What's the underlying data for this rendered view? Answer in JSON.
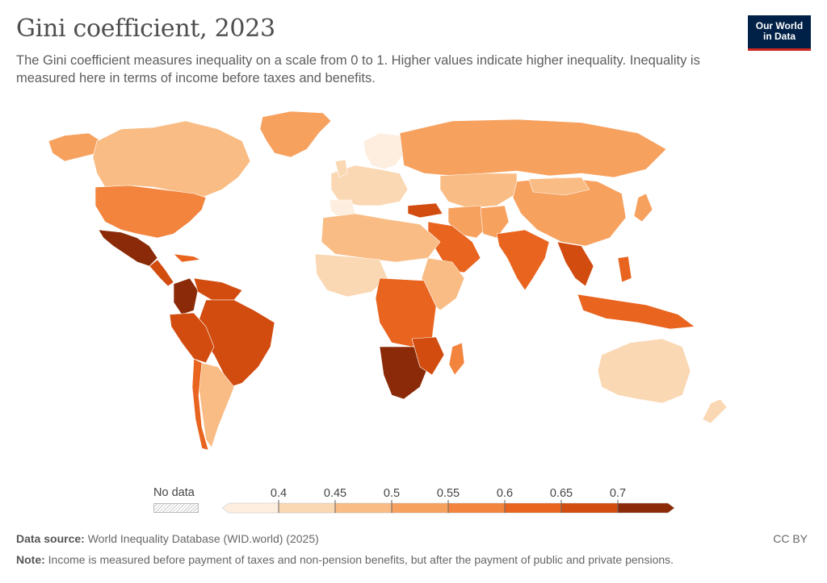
{
  "header": {
    "title": "Gini coefficient, 2023",
    "subtitle": "The Gini coefficient measures inequality on a scale from 0 to 1. Higher values indicate higher inequality. Inequality is measured here in terms of income before taxes and benefits.",
    "logo_line1": "Our World",
    "logo_line2": "in Data"
  },
  "colors": {
    "scale": [
      "#fdeee0",
      "#fbd8b4",
      "#f9bc84",
      "#f7a15f",
      "#f2843d",
      "#e8641f",
      "#d24c10",
      "#8a2a08"
    ],
    "border": "#ffffff",
    "nodata": "#d6d6d6"
  },
  "legend": {
    "no_data_label": "No data",
    "ticks": [
      "0.4",
      "0.45",
      "0.5",
      "0.55",
      "0.6",
      "0.65",
      "0.7"
    ]
  },
  "footer": {
    "source_label": "Data source:",
    "source_text": "World Inequality Database (WID.world) (2025)",
    "note_label": "Note:",
    "note_text": "Income is measured before payment of taxes and non-pension benefits, but after the payment of public and private pensions.",
    "license": "CC BY"
  }
}
